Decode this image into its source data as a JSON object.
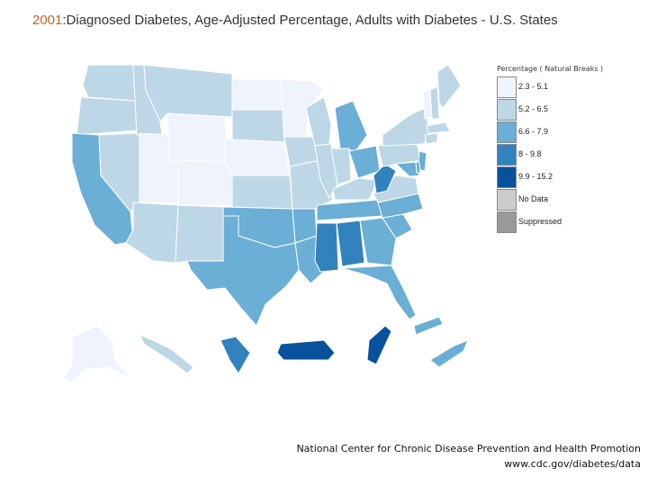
{
  "title": {
    "year": "2001",
    "text": ":Diagnosed Diabetes, Age-Adjusted Percentage, Adults with Diabetes - U.S. States"
  },
  "legend": {
    "title": "Percentage ( Natural Breaks )",
    "items": [
      {
        "label": "2.3 - 5.1",
        "color": "#eff3fb"
      },
      {
        "label": "5.2 - 6.5",
        "color": "#bdd7e7"
      },
      {
        "label": "6.6 - 7.9",
        "color": "#6baed6"
      },
      {
        "label": "8 - 9.8",
        "color": "#3182bd"
      },
      {
        "label": "9.9 - 15.2",
        "color": "#08519c"
      },
      {
        "label": "No Data",
        "color": "#cccccc"
      },
      {
        "label": "Suppressed",
        "color": "#999999"
      }
    ]
  },
  "footer": {
    "line1": "National Center for Chronic Disease Prevention and Health Promotion",
    "line2": "www.cdc.gov/diabetes/data"
  }
}
